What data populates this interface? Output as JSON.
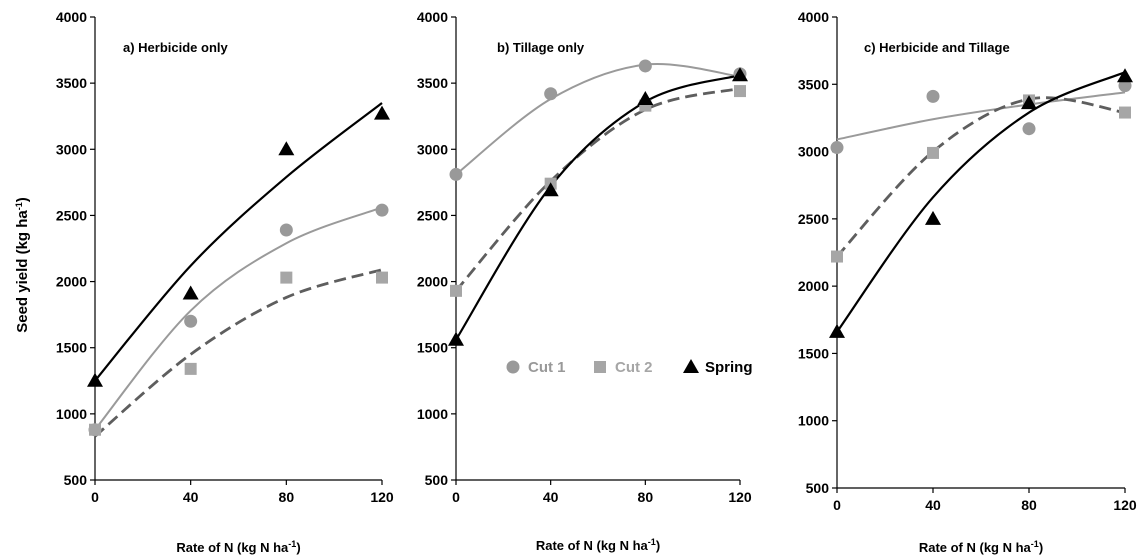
{
  "chart_data": {
    "type": "scatter",
    "shared_ylabel": "Seed yield (kg ha-1)",
    "ylim": [
      500,
      4000
    ],
    "yticks": [
      500,
      1000,
      1500,
      2000,
      2500,
      3000,
      3500,
      4000
    ],
    "xticks": [
      0,
      40,
      80,
      120
    ],
    "series_meta": [
      {
        "name": "Cut 1",
        "color": "#999999",
        "marker": "circle"
      },
      {
        "name": "Cut 2",
        "color": "#a6a6a6",
        "marker": "square"
      },
      {
        "name": "Spring",
        "color": "#000000",
        "marker": "triangle"
      }
    ],
    "panels": [
      {
        "title": "a) Herbicide only",
        "xlabel": "Rate of N (kg N ha-1)",
        "x": [
          0,
          40,
          80,
          120
        ],
        "series": [
          {
            "name": "Cut 1",
            "values": [
              880,
              1700,
              2390,
              2540
            ],
            "fit": [
              880,
              1780,
              2290,
              2560
            ]
          },
          {
            "name": "Cut 2",
            "values": [
              880,
              1340,
              2030,
              2030
            ],
            "fit": [
              830,
              1450,
              1880,
              2090
            ]
          },
          {
            "name": "Spring",
            "values": [
              1250,
              1910,
              3000,
              3270
            ],
            "fit": [
              1250,
              2120,
              2790,
              3350
            ]
          }
        ]
      },
      {
        "title": "b) Tillage only",
        "xlabel": "Rate of N (kg N ha-1)",
        "x": [
          0,
          40,
          80,
          120
        ],
        "series": [
          {
            "name": "Cut 1",
            "values": [
              2810,
              3420,
              3630,
              3570
            ],
            "fit": [
              2810,
              3380,
              3640,
              3550
            ]
          },
          {
            "name": "Cut 2",
            "values": [
              1930,
              2740,
              3330,
              3440
            ],
            "fit": [
              1930,
              2760,
              3300,
              3460
            ]
          },
          {
            "name": "Spring",
            "values": [
              1560,
              2690,
              3380,
              3560
            ],
            "fit": [
              1560,
              2720,
              3360,
              3560
            ]
          }
        ]
      },
      {
        "title": "c) Herbicide and Tillage",
        "xlabel": "Rate of N (kg N ha-1)",
        "x": [
          0,
          40,
          80,
          120
        ],
        "series": [
          {
            "name": "Cut 1",
            "values": [
              3030,
              3410,
              3170,
              3490
            ],
            "fit": [
              3090,
              3240,
              3350,
              3440
            ]
          },
          {
            "name": "Cut 2",
            "values": [
              2220,
              2990,
              3380,
              3290
            ],
            "fit": [
              2220,
              3000,
              3390,
              3290
            ]
          },
          {
            "name": "Spring",
            "values": [
              1660,
              2500,
              3360,
              3560
            ],
            "fit": [
              1660,
              2660,
              3290,
              3590
            ]
          }
        ]
      }
    ]
  }
}
